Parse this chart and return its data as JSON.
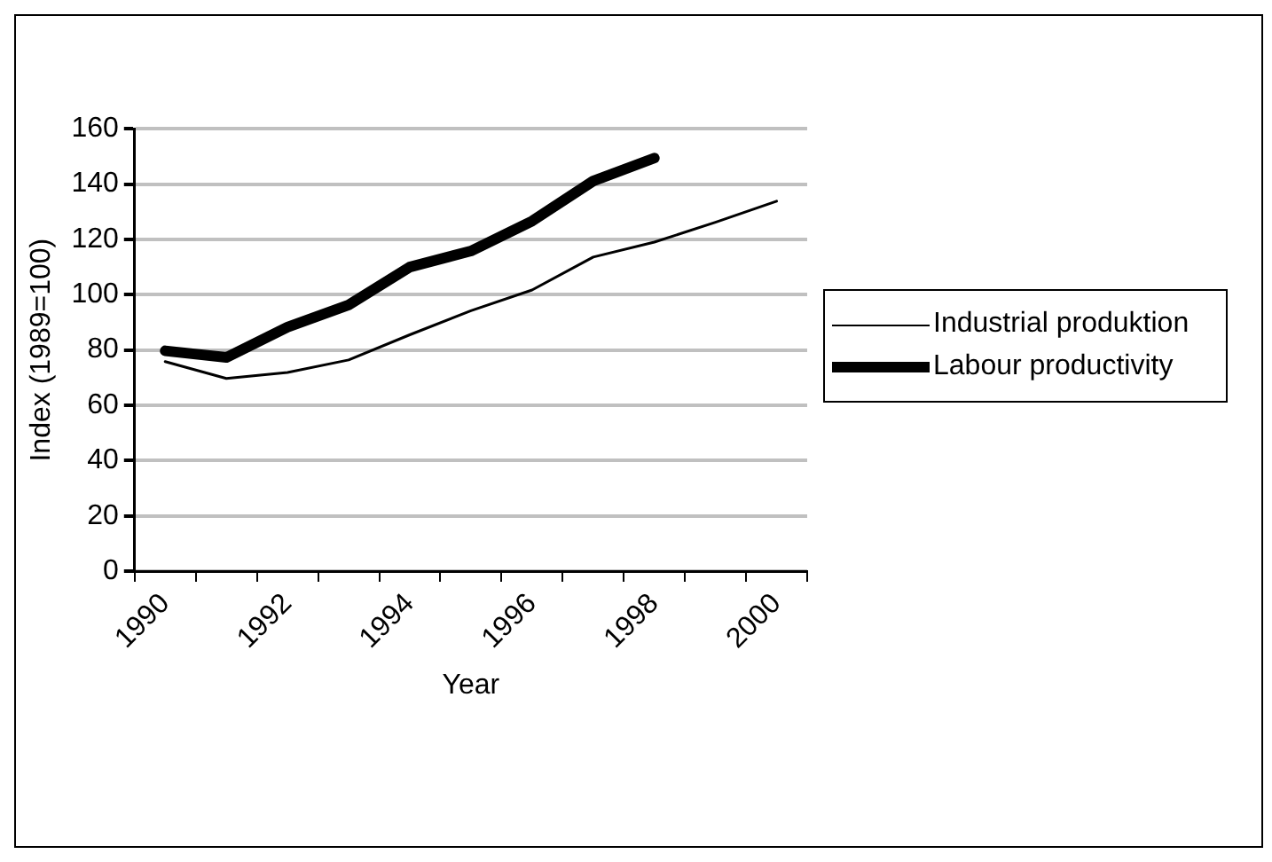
{
  "chart_data": {
    "type": "line",
    "xlabel": "Year",
    "ylabel": "Index (1989=100)",
    "categories": [
      "1990",
      null,
      "1992",
      null,
      "1994",
      null,
      "1996",
      null,
      "1998",
      null,
      "2000"
    ],
    "series": [
      {
        "name": "Industrial produktion",
        "color": "#000000",
        "values": [
          75.8,
          69.7,
          71.9,
          76.4,
          85.5,
          94.2,
          101.7,
          113.6,
          119,
          126.2,
          133.8
        ]
      },
      {
        "name": "Labour productivity",
        "color": "#000000",
        "values": [
          79.7,
          77.3,
          88.3,
          96.3,
          110,
          115.8,
          126.6,
          141.1,
          149.4,
          null,
          null
        ]
      }
    ],
    "ylim": [
      0,
      160
    ],
    "yticks": [
      0,
      20,
      40,
      60,
      80,
      100,
      120,
      140,
      160
    ],
    "grid": "y",
    "legend": "right",
    "marker": "none",
    "line_style": "solid"
  }
}
